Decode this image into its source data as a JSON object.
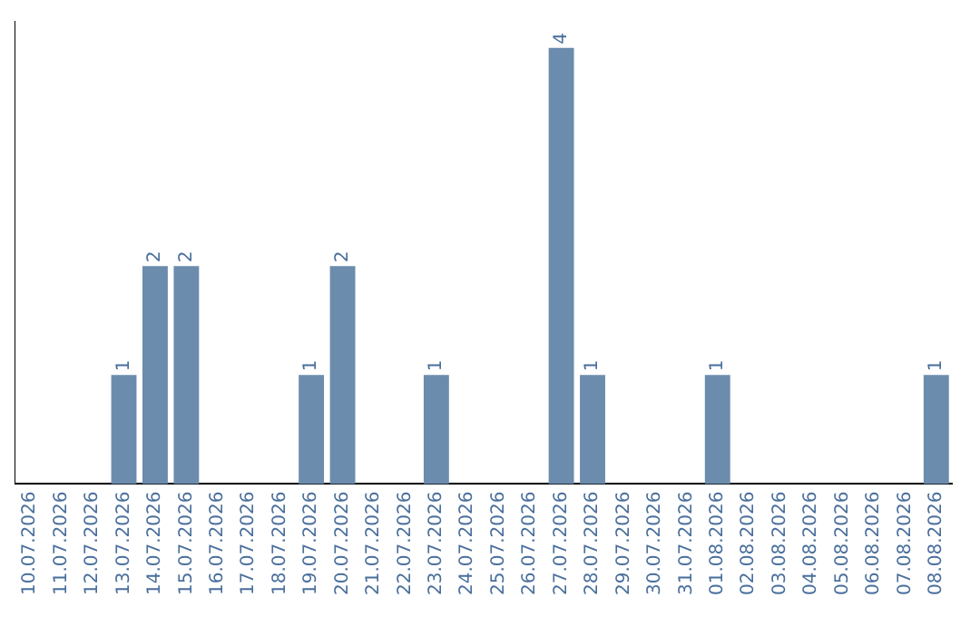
{
  "chart_data": {
    "type": "bar",
    "categories": [
      "10.07.2026",
      "11.07.2026",
      "12.07.2026",
      "13.07.2026",
      "14.07.2026",
      "15.07.2026",
      "16.07.2026",
      "17.07.2026",
      "18.07.2026",
      "19.07.2026",
      "20.07.2026",
      "21.07.2026",
      "22.07.2026",
      "23.07.2026",
      "24.07.2026",
      "25.07.2026",
      "26.07.2026",
      "27.07.2026",
      "28.07.2026",
      "29.07.2026",
      "30.07.2026",
      "31.07.2026",
      "01.08.2026",
      "02.08.2026",
      "03.08.2026",
      "04.08.2026",
      "05.08.2026",
      "06.08.2026",
      "07.08.2026",
      "08.08.2026"
    ],
    "values": [
      0,
      0,
      0,
      1,
      2,
      2,
      0,
      0,
      0,
      1,
      2,
      0,
      0,
      1,
      0,
      0,
      0,
      4,
      1,
      0,
      0,
      0,
      1,
      0,
      0,
      0,
      0,
      0,
      0,
      1
    ],
    "value_labels": [
      null,
      null,
      null,
      "1",
      "2",
      "2",
      null,
      null,
      null,
      "1",
      "2",
      null,
      null,
      "1",
      null,
      null,
      null,
      "4",
      "1",
      null,
      null,
      null,
      "1",
      null,
      null,
      null,
      null,
      null,
      null,
      "1"
    ],
    "color": "#6b8cad",
    "grid": false,
    "legend": false
  }
}
